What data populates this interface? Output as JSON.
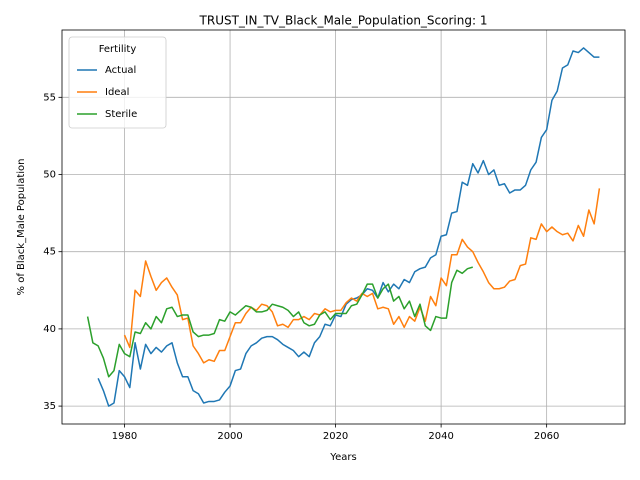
{
  "chart_data": {
    "type": "line",
    "title": "TRUST_IN_TV_Black_Male_Population_Scoring: 1",
    "xlabel": "Years",
    "ylabel": "% of Black_Male Population",
    "legend_title": "Fertility",
    "legend_loc": "upper left",
    "grid": true,
    "xlim": [
      1968.15,
      2074.85
    ],
    "ylim": [
      33.84,
      59.36
    ],
    "xticks": [
      1980,
      2000,
      2020,
      2040,
      2060
    ],
    "yticks": [
      35,
      40,
      45,
      50,
      55
    ],
    "x": [
      1973,
      1974,
      1975,
      1976,
      1977,
      1978,
      1979,
      1980,
      1981,
      1982,
      1983,
      1984,
      1985,
      1986,
      1987,
      1988,
      1989,
      1990,
      1991,
      1992,
      1993,
      1994,
      1995,
      1996,
      1997,
      1998,
      1999,
      2000,
      2001,
      2002,
      2003,
      2004,
      2005,
      2006,
      2007,
      2008,
      2009,
      2010,
      2011,
      2012,
      2013,
      2014,
      2015,
      2016,
      2017,
      2018,
      2019,
      2020,
      2021,
      2022,
      2023,
      2024,
      2025,
      2026,
      2027,
      2028,
      2029,
      2030,
      2031,
      2032,
      2033,
      2034,
      2035,
      2036,
      2037,
      2038,
      2039,
      2040,
      2041,
      2042,
      2043,
      2044,
      2045,
      2046,
      2047,
      2048,
      2049,
      2050,
      2051,
      2052,
      2053,
      2054,
      2055,
      2056,
      2057,
      2058,
      2059,
      2060,
      2061,
      2062,
      2063,
      2064,
      2065,
      2066,
      2067,
      2068,
      2069,
      2070
    ],
    "series": [
      {
        "name": "Actual",
        "color": "#1f77b4",
        "values": [
          null,
          null,
          36.8,
          36.0,
          35.0,
          35.2,
          37.3,
          36.9,
          36.2,
          39.1,
          37.4,
          39.0,
          38.4,
          38.8,
          38.5,
          38.9,
          39.1,
          37.8,
          36.9,
          36.9,
          36.0,
          35.8,
          35.2,
          35.3,
          35.3,
          35.4,
          35.9,
          36.3,
          37.3,
          37.4,
          38.4,
          38.9,
          39.1,
          39.4,
          39.5,
          39.5,
          39.3,
          39.0,
          38.8,
          38.6,
          38.2,
          38.5,
          38.2,
          39.1,
          39.5,
          40.3,
          40.2,
          40.9,
          40.8,
          41.6,
          41.9,
          42.0,
          42.2,
          42.6,
          42.5,
          42.0,
          43.0,
          42.4,
          42.9,
          42.6,
          43.2,
          43.0,
          43.7,
          43.9,
          44.0,
          44.6,
          44.8,
          46.0,
          46.1,
          47.5,
          47.6,
          49.5,
          49.3,
          50.7,
          50.1,
          50.9,
          50.0,
          50.3,
          49.3,
          49.4,
          48.8,
          49.0,
          49.0,
          49.3,
          50.3,
          50.8,
          52.4,
          52.9,
          54.8,
          55.4,
          56.9,
          57.1,
          58.0,
          57.9,
          58.2,
          57.9,
          57.6,
          57.6
        ]
      },
      {
        "name": "Ideal",
        "color": "#ff7f0e",
        "values": [
          null,
          null,
          null,
          null,
          null,
          null,
          null,
          39.6,
          38.8,
          42.5,
          42.1,
          44.4,
          43.4,
          42.5,
          43.0,
          43.3,
          42.7,
          42.2,
          40.6,
          40.7,
          38.9,
          38.4,
          37.8,
          38.0,
          37.9,
          38.6,
          38.6,
          39.5,
          40.4,
          40.4,
          41.0,
          41.4,
          41.2,
          41.6,
          41.5,
          41.1,
          40.2,
          40.3,
          40.1,
          40.6,
          40.6,
          40.8,
          40.6,
          41.0,
          40.9,
          41.3,
          41.1,
          41.2,
          41.2,
          41.7,
          42.0,
          41.8,
          42.3,
          42.1,
          42.3,
          41.3,
          41.4,
          41.3,
          40.3,
          40.8,
          40.1,
          40.8,
          40.5,
          41.4,
          40.5,
          42.1,
          41.5,
          43.3,
          42.8,
          44.8,
          44.8,
          45.8,
          45.3,
          45.0,
          44.3,
          43.7,
          43.0,
          42.6,
          42.6,
          42.7,
          43.1,
          43.2,
          44.1,
          44.2,
          45.9,
          45.8,
          46.8,
          46.3,
          46.6,
          46.3,
          46.1,
          46.2,
          45.7,
          46.7,
          46.0,
          47.7,
          46.8,
          49.1
        ]
      },
      {
        "name": "Sterile",
        "color": "#2ca02c",
        "values": [
          40.8,
          39.1,
          38.9,
          38.1,
          36.9,
          37.3,
          39.0,
          38.4,
          38.2,
          39.8,
          39.7,
          40.4,
          40.0,
          40.8,
          40.4,
          41.3,
          41.4,
          40.8,
          40.9,
          40.9,
          39.8,
          39.5,
          39.6,
          39.6,
          39.7,
          40.6,
          40.5,
          41.1,
          40.9,
          41.2,
          41.5,
          41.4,
          41.1,
          41.1,
          41.2,
          41.6,
          41.5,
          41.4,
          41.2,
          40.8,
          41.1,
          40.4,
          40.2,
          40.3,
          40.9,
          41.1,
          40.6,
          41.0,
          41.0,
          41.0,
          41.5,
          41.6,
          42.2,
          42.9,
          42.9,
          42.0,
          42.6,
          42.9,
          41.8,
          42.1,
          41.3,
          41.8,
          40.8,
          41.6,
          40.2,
          39.9,
          40.8,
          40.7,
          40.7,
          43.0,
          43.8,
          43.6,
          43.9,
          44.0,
          null,
          null,
          null,
          null,
          null,
          null,
          null,
          null,
          null,
          null,
          null,
          null,
          null,
          null,
          null,
          null,
          null,
          null,
          null,
          null,
          null,
          null,
          null,
          null
        ]
      }
    ]
  }
}
